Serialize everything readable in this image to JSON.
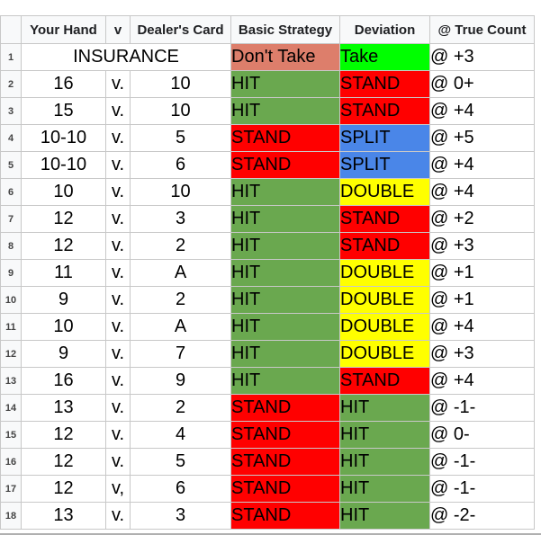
{
  "headers": {
    "your_hand": "Your Hand",
    "v": "v",
    "dealers_card": "Dealer's Card",
    "basic_strategy": "Basic Strategy",
    "deviation": "Deviation",
    "true_count": "@ True Count"
  },
  "colors": {
    "green": "#6aa84f",
    "red": "#ff0000",
    "blue": "#4a86e8",
    "yellow": "#ffff00",
    "salmon": "#dd7e6b",
    "lime": "#00ff00"
  },
  "rows": [
    {
      "num": "1",
      "insurance": "INSURANCE",
      "basic": "Don't Take",
      "deviation": "Take",
      "count": "@ +3",
      "basic_color": "salmon",
      "dev_color": "lime"
    },
    {
      "num": "2",
      "hand": "16",
      "v": "v.",
      "dealer": "10",
      "basic": "HIT",
      "deviation": "STAND",
      "count": "@ 0+",
      "basic_color": "green",
      "dev_color": "red"
    },
    {
      "num": "3",
      "hand": "15",
      "v": "v.",
      "dealer": "10",
      "basic": "HIT",
      "deviation": "STAND",
      "count": "@ +4",
      "basic_color": "green",
      "dev_color": "red"
    },
    {
      "num": "4",
      "hand": "10-10",
      "v": "v.",
      "dealer": "5",
      "basic": "STAND",
      "deviation": "SPLIT",
      "count": "@ +5",
      "basic_color": "red",
      "dev_color": "blue"
    },
    {
      "num": "5",
      "hand": "10-10",
      "v": "v.",
      "dealer": "6",
      "basic": "STAND",
      "deviation": "SPLIT",
      "count": "@ +4",
      "basic_color": "red",
      "dev_color": "blue"
    },
    {
      "num": "6",
      "hand": "10",
      "v": "v.",
      "dealer": "10",
      "basic": "HIT",
      "deviation": "DOUBLE",
      "count": "@ +4",
      "basic_color": "green",
      "dev_color": "yellow"
    },
    {
      "num": "7",
      "hand": "12",
      "v": "v.",
      "dealer": "3",
      "basic": "HIT",
      "deviation": "STAND",
      "count": "@ +2",
      "basic_color": "green",
      "dev_color": "red"
    },
    {
      "num": "8",
      "hand": "12",
      "v": "v.",
      "dealer": "2",
      "basic": "HIT",
      "deviation": "STAND",
      "count": "@ +3",
      "basic_color": "green",
      "dev_color": "red"
    },
    {
      "num": "9",
      "hand": "11",
      "v": "v.",
      "dealer": "A",
      "basic": "HIT",
      "deviation": "DOUBLE",
      "count": "@ +1",
      "basic_color": "green",
      "dev_color": "yellow"
    },
    {
      "num": "10",
      "hand": "9",
      "v": "v.",
      "dealer": "2",
      "basic": "HIT",
      "deviation": "DOUBLE",
      "count": "@ +1",
      "basic_color": "green",
      "dev_color": "yellow"
    },
    {
      "num": "11",
      "hand": "10",
      "v": "v.",
      "dealer": "A",
      "basic": "HIT",
      "deviation": "DOUBLE",
      "count": "@ +4",
      "basic_color": "green",
      "dev_color": "yellow"
    },
    {
      "num": "12",
      "hand": "9",
      "v": "v.",
      "dealer": "7",
      "basic": "HIT",
      "deviation": "DOUBLE",
      "count": "@ +3",
      "basic_color": "green",
      "dev_color": "yellow"
    },
    {
      "num": "13",
      "hand": "16",
      "v": "v.",
      "dealer": "9",
      "basic": "HIT",
      "deviation": "STAND",
      "count": "@ +4",
      "basic_color": "green",
      "dev_color": "red"
    },
    {
      "num": "14",
      "hand": "13",
      "v": "v.",
      "dealer": "2",
      "basic": "STAND",
      "deviation": "HIT",
      "count": "@ -1-",
      "basic_color": "red",
      "dev_color": "green"
    },
    {
      "num": "15",
      "hand": "12",
      "v": "v.",
      "dealer": "4",
      "basic": "STAND",
      "deviation": "HIT",
      "count": "@ 0-",
      "basic_color": "red",
      "dev_color": "green"
    },
    {
      "num": "16",
      "hand": "12",
      "v": "v.",
      "dealer": "5",
      "basic": "STAND",
      "deviation": "HIT",
      "count": "@ -1-",
      "basic_color": "red",
      "dev_color": "green"
    },
    {
      "num": "17",
      "hand": "12",
      "v": "v,",
      "dealer": "6",
      "basic": "STAND",
      "deviation": "HIT",
      "count": "@ -1-",
      "basic_color": "red",
      "dev_color": "green"
    },
    {
      "num": "18",
      "hand": "13",
      "v": "v.",
      "dealer": "3",
      "basic": "STAND",
      "deviation": "HIT",
      "count": "@ -2-",
      "basic_color": "red",
      "dev_color": "green"
    }
  ]
}
